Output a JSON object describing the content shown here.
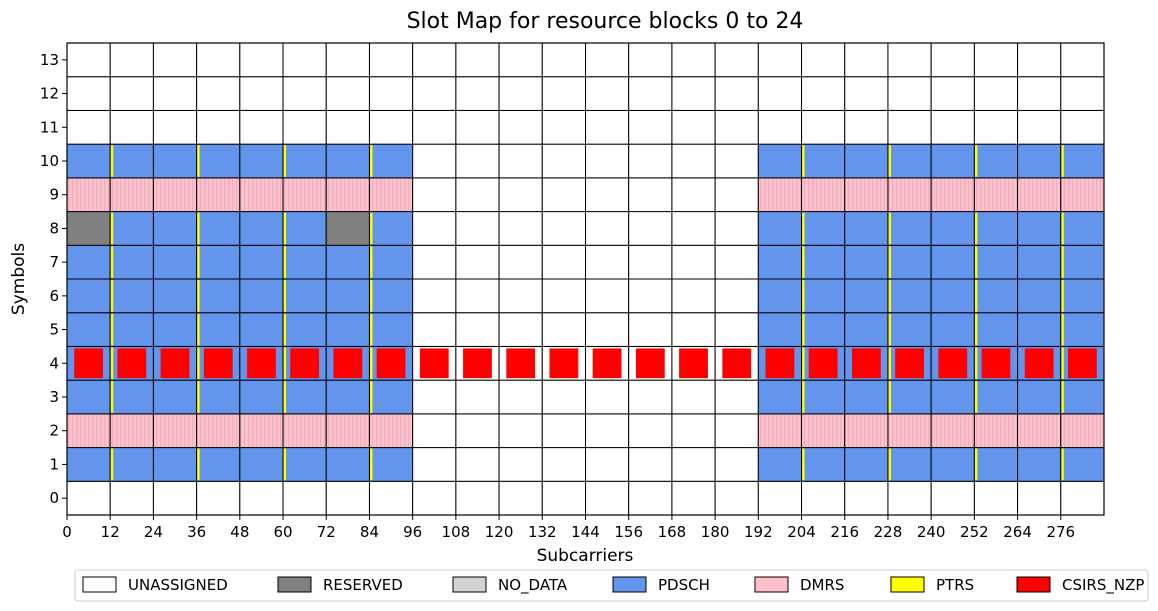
{
  "chart_data": {
    "type": "heatmap",
    "title": "Slot Map for resource blocks 0 to 24",
    "xlabel": "Subcarriers",
    "ylabel": "Symbols",
    "x_ticks": [
      "0",
      "12",
      "24",
      "36",
      "48",
      "60",
      "72",
      "84",
      "96",
      "108",
      "120",
      "132",
      "144",
      "156",
      "168",
      "180",
      "192",
      "204",
      "216",
      "228",
      "240",
      "252",
      "264",
      "276"
    ],
    "y_ticks": [
      "0",
      "1",
      "2",
      "3",
      "4",
      "5",
      "6",
      "7",
      "8",
      "9",
      "10",
      "11",
      "12",
      "13"
    ],
    "xlim": [
      0,
      288
    ],
    "ylim": [
      -0.5,
      13.5
    ],
    "resource_block_size": 12,
    "symbol_rows": [
      {
        "symbol": 0,
        "rb_types": [
          "UNASSIGNED",
          "UNASSIGNED",
          "UNASSIGNED",
          "UNASSIGNED",
          "UNASSIGNED",
          "UNASSIGNED",
          "UNASSIGNED",
          "UNASSIGNED",
          "UNASSIGNED",
          "UNASSIGNED",
          "UNASSIGNED",
          "UNASSIGNED",
          "UNASSIGNED",
          "UNASSIGNED",
          "UNASSIGNED",
          "UNASSIGNED",
          "UNASSIGNED",
          "UNASSIGNED",
          "UNASSIGNED",
          "UNASSIGNED",
          "UNASSIGNED",
          "UNASSIGNED",
          "UNASSIGNED",
          "UNASSIGNED"
        ]
      },
      {
        "symbol": 1,
        "rb_types": [
          "PDSCH",
          "PDSCH",
          "PDSCH",
          "PDSCH",
          "PDSCH",
          "PDSCH",
          "PDSCH",
          "PDSCH",
          "UNASSIGNED",
          "UNASSIGNED",
          "UNASSIGNED",
          "UNASSIGNED",
          "UNASSIGNED",
          "UNASSIGNED",
          "UNASSIGNED",
          "UNASSIGNED",
          "PDSCH",
          "PDSCH",
          "PDSCH",
          "PDSCH",
          "PDSCH",
          "PDSCH",
          "PDSCH",
          "PDSCH"
        ]
      },
      {
        "symbol": 2,
        "rb_types": [
          "DMRS",
          "DMRS",
          "DMRS",
          "DMRS",
          "DMRS",
          "DMRS",
          "DMRS",
          "DMRS",
          "UNASSIGNED",
          "UNASSIGNED",
          "UNASSIGNED",
          "UNASSIGNED",
          "UNASSIGNED",
          "UNASSIGNED",
          "UNASSIGNED",
          "UNASSIGNED",
          "DMRS",
          "DMRS",
          "DMRS",
          "DMRS",
          "DMRS",
          "DMRS",
          "DMRS",
          "DMRS"
        ]
      },
      {
        "symbol": 3,
        "rb_types": [
          "PDSCH",
          "PDSCH",
          "PDSCH",
          "PDSCH",
          "PDSCH",
          "PDSCH",
          "PDSCH",
          "PDSCH",
          "UNASSIGNED",
          "UNASSIGNED",
          "UNASSIGNED",
          "UNASSIGNED",
          "UNASSIGNED",
          "UNASSIGNED",
          "UNASSIGNED",
          "UNASSIGNED",
          "PDSCH",
          "PDSCH",
          "PDSCH",
          "PDSCH",
          "PDSCH",
          "PDSCH",
          "PDSCH",
          "PDSCH"
        ]
      },
      {
        "symbol": 4,
        "rb_types": [
          "PDSCH",
          "PDSCH",
          "PDSCH",
          "PDSCH",
          "PDSCH",
          "PDSCH",
          "PDSCH",
          "PDSCH",
          "UNASSIGNED",
          "UNASSIGNED",
          "UNASSIGNED",
          "UNASSIGNED",
          "UNASSIGNED",
          "UNASSIGNED",
          "UNASSIGNED",
          "UNASSIGNED",
          "PDSCH",
          "PDSCH",
          "PDSCH",
          "PDSCH",
          "PDSCH",
          "PDSCH",
          "PDSCH",
          "PDSCH"
        ]
      },
      {
        "symbol": 5,
        "rb_types": [
          "PDSCH",
          "PDSCH",
          "PDSCH",
          "PDSCH",
          "PDSCH",
          "PDSCH",
          "PDSCH",
          "PDSCH",
          "UNASSIGNED",
          "UNASSIGNED",
          "UNASSIGNED",
          "UNASSIGNED",
          "UNASSIGNED",
          "UNASSIGNED",
          "UNASSIGNED",
          "UNASSIGNED",
          "PDSCH",
          "PDSCH",
          "PDSCH",
          "PDSCH",
          "PDSCH",
          "PDSCH",
          "PDSCH",
          "PDSCH"
        ]
      },
      {
        "symbol": 6,
        "rb_types": [
          "PDSCH",
          "PDSCH",
          "PDSCH",
          "PDSCH",
          "PDSCH",
          "PDSCH",
          "PDSCH",
          "PDSCH",
          "UNASSIGNED",
          "UNASSIGNED",
          "UNASSIGNED",
          "UNASSIGNED",
          "UNASSIGNED",
          "UNASSIGNED",
          "UNASSIGNED",
          "UNASSIGNED",
          "PDSCH",
          "PDSCH",
          "PDSCH",
          "PDSCH",
          "PDSCH",
          "PDSCH",
          "PDSCH",
          "PDSCH"
        ]
      },
      {
        "symbol": 7,
        "rb_types": [
          "PDSCH",
          "PDSCH",
          "PDSCH",
          "PDSCH",
          "PDSCH",
          "PDSCH",
          "PDSCH",
          "PDSCH",
          "UNASSIGNED",
          "UNASSIGNED",
          "UNASSIGNED",
          "UNASSIGNED",
          "UNASSIGNED",
          "UNASSIGNED",
          "UNASSIGNED",
          "UNASSIGNED",
          "PDSCH",
          "PDSCH",
          "PDSCH",
          "PDSCH",
          "PDSCH",
          "PDSCH",
          "PDSCH",
          "PDSCH"
        ]
      },
      {
        "symbol": 8,
        "rb_types": [
          "RESERVED",
          "PDSCH",
          "PDSCH",
          "PDSCH",
          "PDSCH",
          "PDSCH",
          "RESERVED",
          "PDSCH",
          "UNASSIGNED",
          "UNASSIGNED",
          "UNASSIGNED",
          "UNASSIGNED",
          "UNASSIGNED",
          "UNASSIGNED",
          "UNASSIGNED",
          "UNASSIGNED",
          "PDSCH",
          "PDSCH",
          "PDSCH",
          "PDSCH",
          "PDSCH",
          "PDSCH",
          "PDSCH",
          "PDSCH"
        ]
      },
      {
        "symbol": 9,
        "rb_types": [
          "DMRS",
          "DMRS",
          "DMRS",
          "DMRS",
          "DMRS",
          "DMRS",
          "DMRS",
          "DMRS",
          "UNASSIGNED",
          "UNASSIGNED",
          "UNASSIGNED",
          "UNASSIGNED",
          "UNASSIGNED",
          "UNASSIGNED",
          "UNASSIGNED",
          "UNASSIGNED",
          "DMRS",
          "DMRS",
          "DMRS",
          "DMRS",
          "DMRS",
          "DMRS",
          "DMRS",
          "DMRS"
        ]
      },
      {
        "symbol": 10,
        "rb_types": [
          "PDSCH",
          "PDSCH",
          "PDSCH",
          "PDSCH",
          "PDSCH",
          "PDSCH",
          "PDSCH",
          "PDSCH",
          "UNASSIGNED",
          "UNASSIGNED",
          "UNASSIGNED",
          "UNASSIGNED",
          "UNASSIGNED",
          "UNASSIGNED",
          "UNASSIGNED",
          "UNASSIGNED",
          "PDSCH",
          "PDSCH",
          "PDSCH",
          "PDSCH",
          "PDSCH",
          "PDSCH",
          "PDSCH",
          "PDSCH"
        ]
      },
      {
        "symbol": 11,
        "rb_types": [
          "UNASSIGNED",
          "UNASSIGNED",
          "UNASSIGNED",
          "UNASSIGNED",
          "UNASSIGNED",
          "UNASSIGNED",
          "UNASSIGNED",
          "UNASSIGNED",
          "UNASSIGNED",
          "UNASSIGNED",
          "UNASSIGNED",
          "UNASSIGNED",
          "UNASSIGNED",
          "UNASSIGNED",
          "UNASSIGNED",
          "UNASSIGNED",
          "UNASSIGNED",
          "UNASSIGNED",
          "UNASSIGNED",
          "UNASSIGNED",
          "UNASSIGNED",
          "UNASSIGNED",
          "UNASSIGNED",
          "UNASSIGNED"
        ]
      },
      {
        "symbol": 12,
        "rb_types": [
          "UNASSIGNED",
          "UNASSIGNED",
          "UNASSIGNED",
          "UNASSIGNED",
          "UNASSIGNED",
          "UNASSIGNED",
          "UNASSIGNED",
          "UNASSIGNED",
          "UNASSIGNED",
          "UNASSIGNED",
          "UNASSIGNED",
          "UNASSIGNED",
          "UNASSIGNED",
          "UNASSIGNED",
          "UNASSIGNED",
          "UNASSIGNED",
          "UNASSIGNED",
          "UNASSIGNED",
          "UNASSIGNED",
          "UNASSIGNED",
          "UNASSIGNED",
          "UNASSIGNED",
          "UNASSIGNED",
          "UNASSIGNED"
        ]
      },
      {
        "symbol": 13,
        "rb_types": [
          "UNASSIGNED",
          "UNASSIGNED",
          "UNASSIGNED",
          "UNASSIGNED",
          "UNASSIGNED",
          "UNASSIGNED",
          "UNASSIGNED",
          "UNASSIGNED",
          "UNASSIGNED",
          "UNASSIGNED",
          "UNASSIGNED",
          "UNASSIGNED",
          "UNASSIGNED",
          "UNASSIGNED",
          "UNASSIGNED",
          "UNASSIGNED",
          "UNASSIGNED",
          "UNASSIGNED",
          "UNASSIGNED",
          "UNASSIGNED",
          "UNASSIGNED",
          "UNASSIGNED",
          "UNASSIGNED",
          "UNASSIGNED"
        ]
      }
    ],
    "csirs_nzp": {
      "symbol": 4,
      "rb_range": [
        0,
        23
      ],
      "subcarrier_offsets": [
        2,
        10
      ]
    },
    "ptrs": {
      "subcarriers": [
        12,
        36,
        60,
        84,
        204,
        228,
        252,
        276
      ],
      "symbols": [
        1,
        3,
        4,
        5,
        6,
        7,
        8,
        10
      ]
    },
    "legend": [
      {
        "label": "UNASSIGNED",
        "color": "#ffffff"
      },
      {
        "label": "RESERVED",
        "color": "#808080"
      },
      {
        "label": "NO_DATA",
        "color": "#d3d3d3"
      },
      {
        "label": "PDSCH",
        "color": "#6495ed"
      },
      {
        "label": "DMRS",
        "color": "#ffc0cb"
      },
      {
        "label": "PTRS",
        "color": "#ffff00"
      },
      {
        "label": "CSIRS_NZP",
        "color": "#ff0000"
      }
    ],
    "legend_position": "bottom-center",
    "grid": false
  }
}
